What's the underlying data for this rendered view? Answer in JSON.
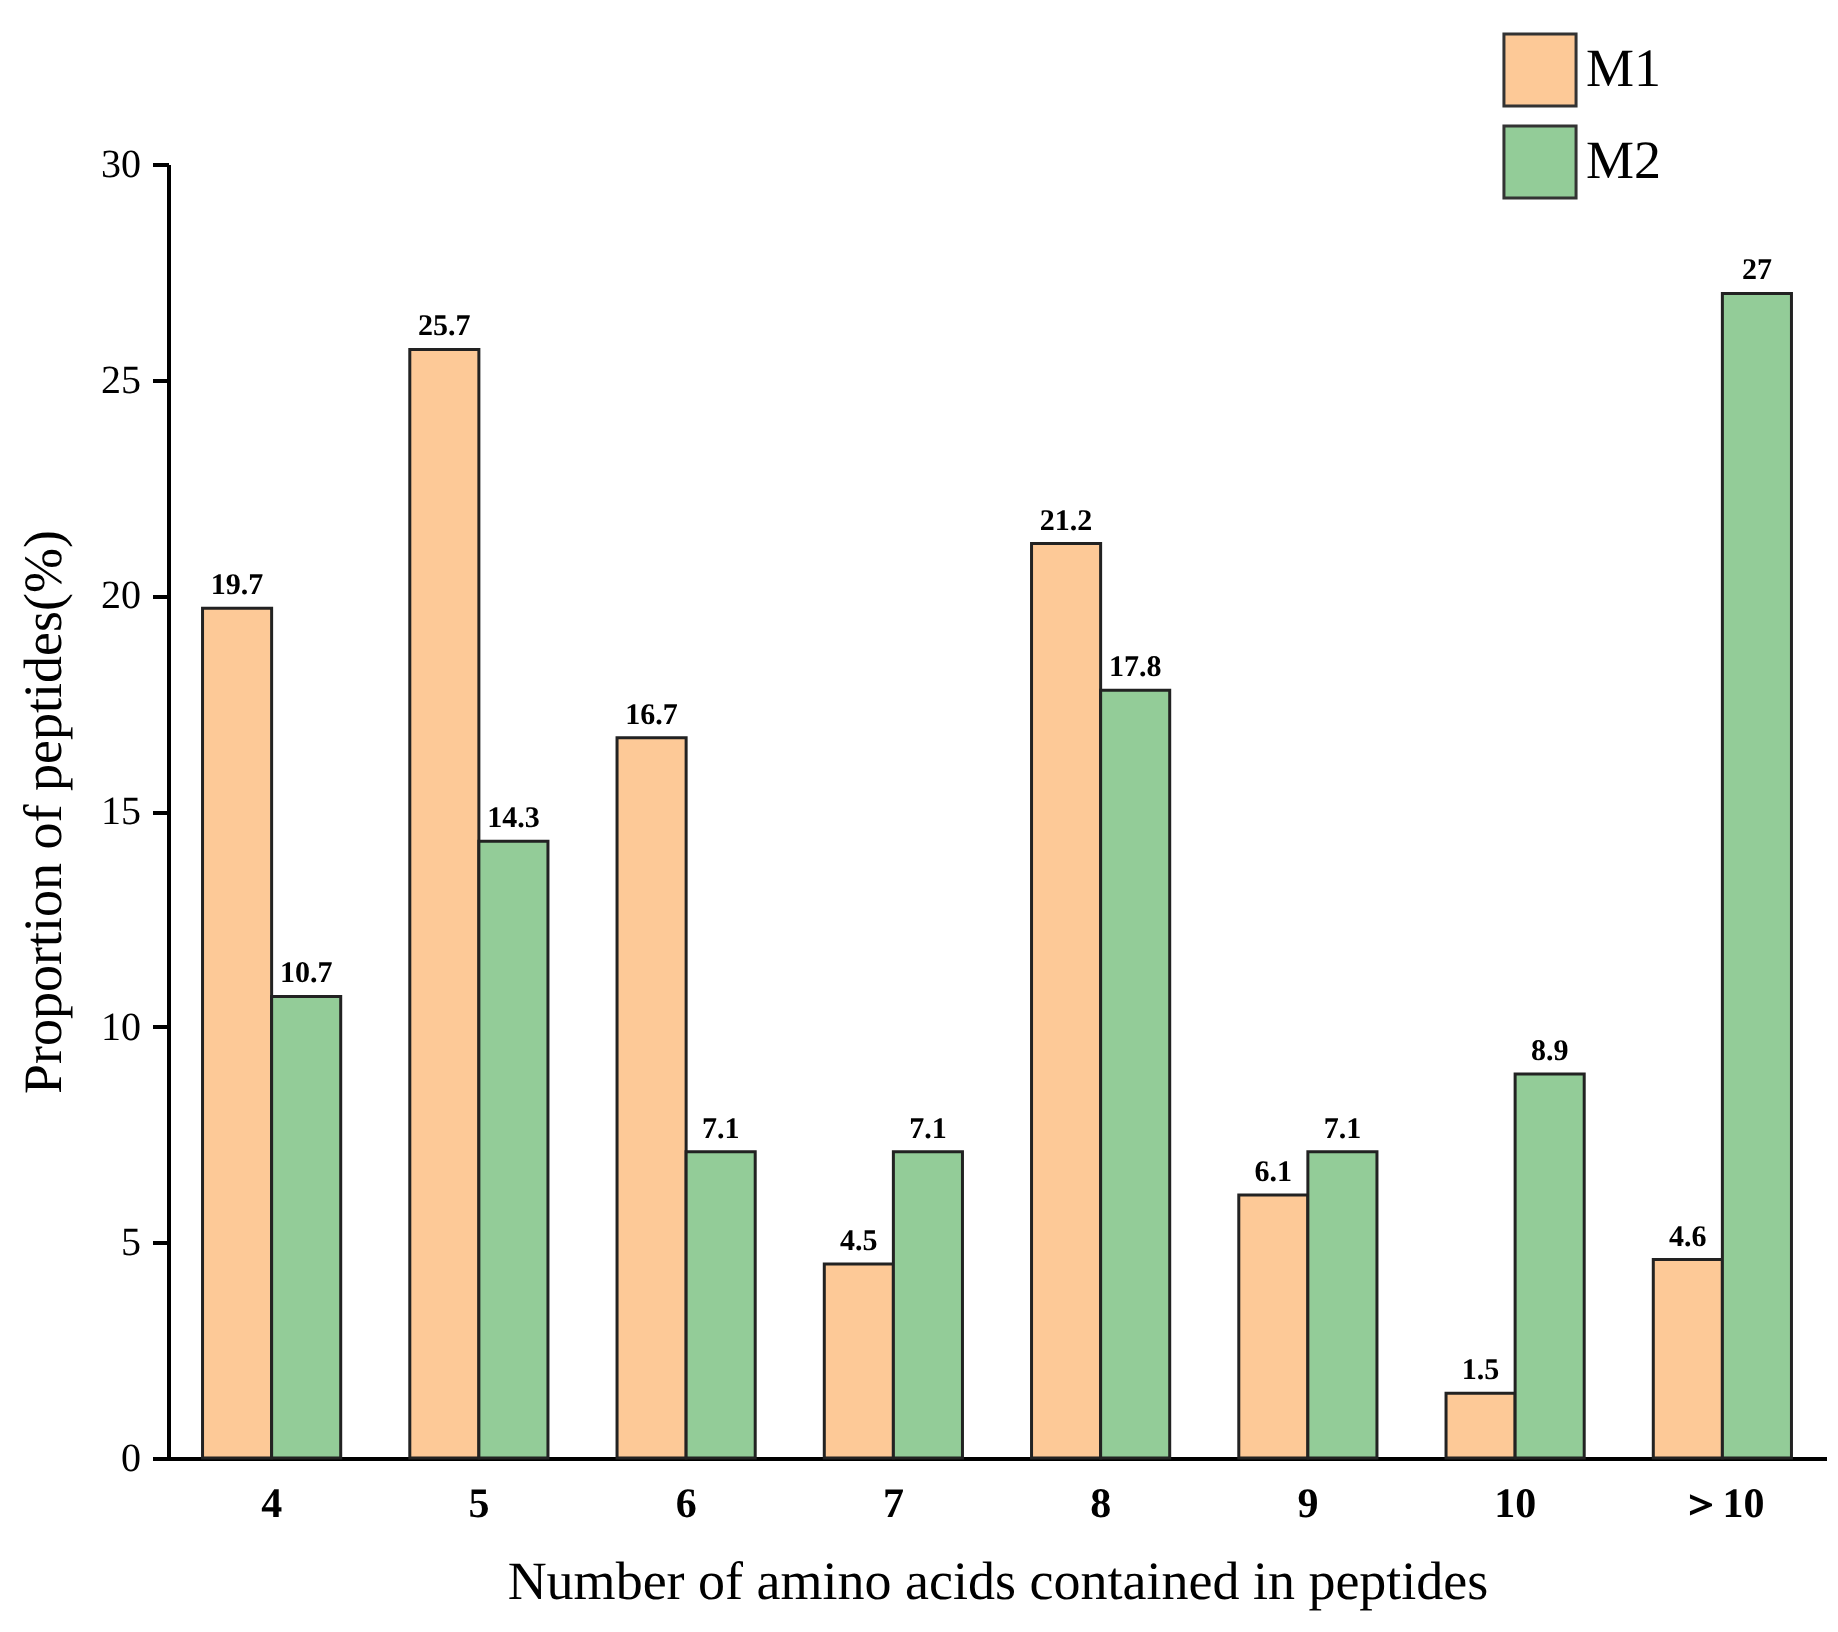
{
  "chart_data": {
    "type": "bar",
    "xlabel": "Number of amino acids contained in peptides",
    "ylabel": "Proportion of peptides(%)",
    "categories": [
      "4",
      "5",
      "6",
      "7",
      "8",
      "9",
      "10",
      "＞10"
    ],
    "series": [
      {
        "name": "M1",
        "color": "#fdc997",
        "values": [
          19.7,
          25.7,
          16.7,
          4.5,
          21.2,
          6.1,
          1.5,
          4.6
        ]
      },
      {
        "name": "M2",
        "color": "#93cc98",
        "values": [
          10.7,
          14.3,
          7.1,
          7.1,
          17.8,
          7.1,
          8.9,
          27
        ]
      }
    ],
    "ylim": [
      0,
      30
    ],
    "yticks": [
      0,
      5,
      10,
      15,
      20,
      25,
      30
    ],
    "data_labels": true,
    "legend": "top right",
    "grid": false
  }
}
